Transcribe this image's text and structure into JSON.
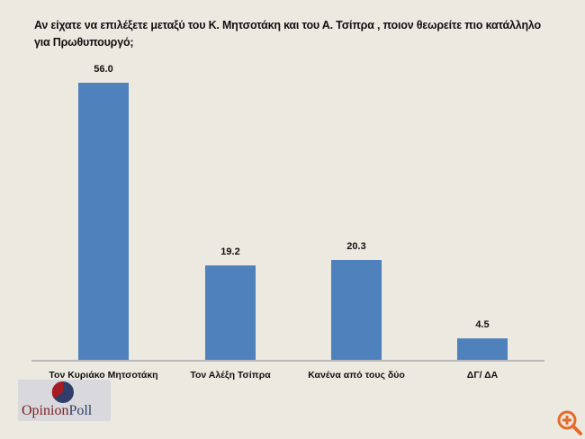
{
  "chart_data": {
    "type": "bar",
    "title": "Αν είχατε να επιλέξετε μεταξύ του Κ. Μητσοτάκη και του Α. Τσίπρα , ποιον θεωρείτε πιο κατάλληλο για Πρωθυπουργό;",
    "categories": [
      "Τον Κυριάκο Μητσοτάκη",
      "Τον Αλέξη Τσίπρα",
      "Κανένα από τους δύο",
      "ΔΓ/ ΔΑ"
    ],
    "values": [
      56.0,
      19.2,
      20.3,
      4.5
    ],
    "data_labels": [
      "56.0",
      "19.2",
      "20.3",
      "4.5"
    ],
    "xlabel": "",
    "ylabel": "",
    "grid": false,
    "bar_color": "#4f81bd"
  },
  "logo": {
    "text_part1": "Opinion",
    "text_part2": "Poll",
    "colors": {
      "red": "#a51c22",
      "navy": "#2f3f6a"
    }
  },
  "zoom_icon": {
    "name": "zoom-in-icon",
    "color": "#e8692a"
  }
}
